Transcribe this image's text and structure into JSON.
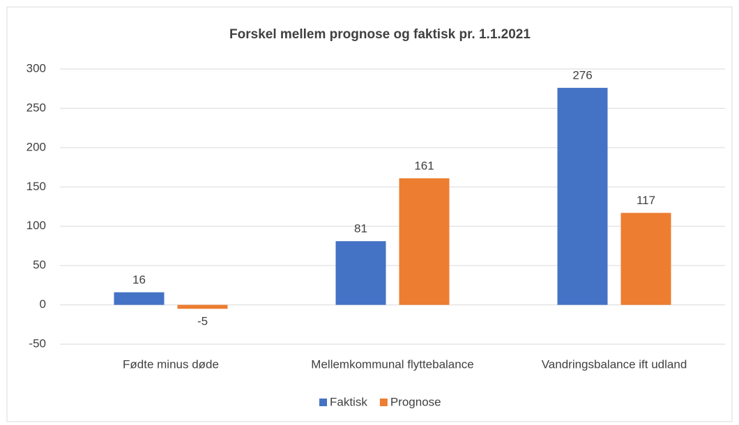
{
  "chart_data": {
    "type": "bar",
    "title": "Forskel mellem prognose og faktisk pr. 1.1.2021",
    "categories": [
      "Fødte minus døde",
      "Mellemkommunal flyttebalance",
      "Vandringsbalance ift udland"
    ],
    "series": [
      {
        "name": "Faktisk",
        "color": "#4472c4",
        "values": [
          16,
          81,
          276
        ]
      },
      {
        "name": "Prognose",
        "color": "#ed7d31",
        "values": [
          -5,
          161,
          117
        ]
      }
    ],
    "ylim": [
      -50,
      300
    ],
    "yticks": [
      -50,
      0,
      50,
      100,
      150,
      200,
      250,
      300
    ],
    "grid": true,
    "legend": "bottom"
  }
}
